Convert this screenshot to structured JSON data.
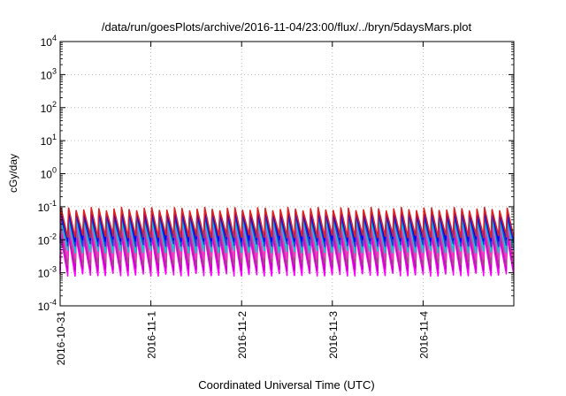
{
  "chart_data": {
    "type": "line",
    "title": "/data/run/goesPlots/archive/2016-11-04/23:00/flux/../bryn/5daysMars.plot",
    "xlabel": "Coordinated Universal Time (UTC)",
    "ylabel": "cGy/day",
    "yscale": "log",
    "ylim": [
      0.0001,
      10000
    ],
    "y_ticks": [
      {
        "value": 0.0001,
        "base": "10",
        "exp": "-4"
      },
      {
        "value": 0.001,
        "base": "10",
        "exp": "-3"
      },
      {
        "value": 0.01,
        "base": "10",
        "exp": "-2"
      },
      {
        "value": 0.1,
        "base": "10",
        "exp": "-1"
      },
      {
        "value": 1,
        "base": "10",
        "exp": "0"
      },
      {
        "value": 10,
        "base": "10",
        "exp": "1"
      },
      {
        "value": 100,
        "base": "10",
        "exp": "2"
      },
      {
        "value": 1000,
        "base": "10",
        "exp": "3"
      },
      {
        "value": 10000,
        "base": "10",
        "exp": "4"
      }
    ],
    "xlim": [
      "2016-10-31T00:00",
      "2016-11-05T00:00"
    ],
    "x_ticks": [
      "2016-10-31",
      "2016-11-1",
      "2016-11-2",
      "2016-11-3",
      "2016-11-4"
    ],
    "grid": true,
    "sawtooth_cycles_per_day": 12,
    "series": [
      {
        "color": "#ff00ff",
        "peak": 0.012,
        "trough": 0.0009
      },
      {
        "color": "#cc00cc",
        "peak": 0.016,
        "trough": 0.0013
      },
      {
        "color": "#a05080",
        "peak": 0.022,
        "trough": 0.0019
      },
      {
        "color": "#ff33cc",
        "peak": 0.03,
        "trough": 0.0028
      },
      {
        "color": "#00cccc",
        "peak": 0.04,
        "trough": 0.0045
      },
      {
        "color": "#1f3fd0",
        "peak": 0.055,
        "trough": 0.007
      },
      {
        "color": "#0000ff",
        "peak": 0.07,
        "trough": 0.01
      },
      {
        "color": "#dd2222",
        "peak": 0.085,
        "trough": 0.013
      }
    ]
  }
}
